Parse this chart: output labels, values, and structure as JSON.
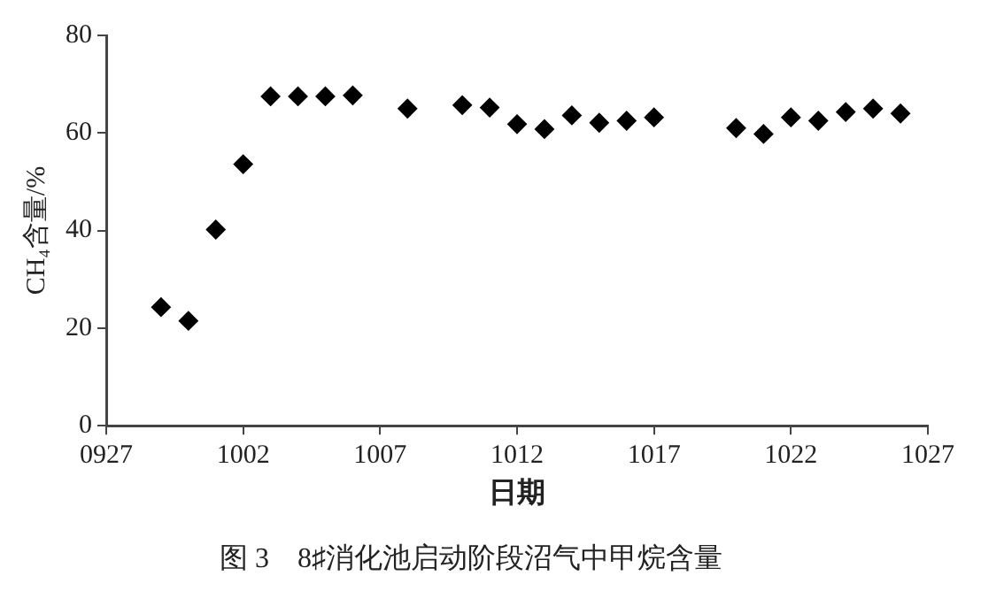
{
  "chart_data": {
    "type": "scatter",
    "title": "图 3　8♯消化池启动阶段沼气中甲烷含量",
    "xlabel": "日期",
    "ylabel": "CH₄含量/%",
    "x": [
      "--09-29",
      "--09-30",
      "--10-01",
      "--10-02",
      "--10-03",
      "--10-04",
      "--10-05",
      "--10-06",
      "--10-08",
      "--10-10",
      "--10-11",
      "--10-12",
      "--10-13",
      "--10-14",
      "--10-15",
      "--10-16",
      "--10-17",
      "--10-20",
      "--10-21",
      "--10-22",
      "--10-23",
      "--10-24",
      "--10-25",
      "--10-26"
    ],
    "series": [
      {
        "color": "#000000",
        "values": [
          24.3,
          21.5,
          40.2,
          53.6,
          67.5,
          67.5,
          67.5,
          67.7,
          65.0,
          65.7,
          65.2,
          61.8,
          60.8,
          63.6,
          62.1,
          62.5,
          63.2,
          61.0,
          59.8,
          63.2,
          62.5,
          64.3,
          65.0,
          64.0
        ]
      }
    ],
    "xlim": [
      "--09-27",
      "--10-27"
    ],
    "xticks": [
      {
        "value": "--09-27",
        "label": "0927"
      },
      {
        "value": "--10-02",
        "label": "1002"
      },
      {
        "value": "--10-07",
        "label": "1007"
      },
      {
        "value": "--10-12",
        "label": "1012"
      },
      {
        "value": "--10-17",
        "label": "1017"
      },
      {
        "value": "--10-22",
        "label": "1022"
      },
      {
        "value": "--10-27",
        "label": "1027"
      }
    ],
    "ylim": [
      0,
      80
    ],
    "yticks": [
      0,
      20,
      40,
      60,
      80
    ],
    "grid": false,
    "legend": false,
    "marker": "diamond"
  }
}
